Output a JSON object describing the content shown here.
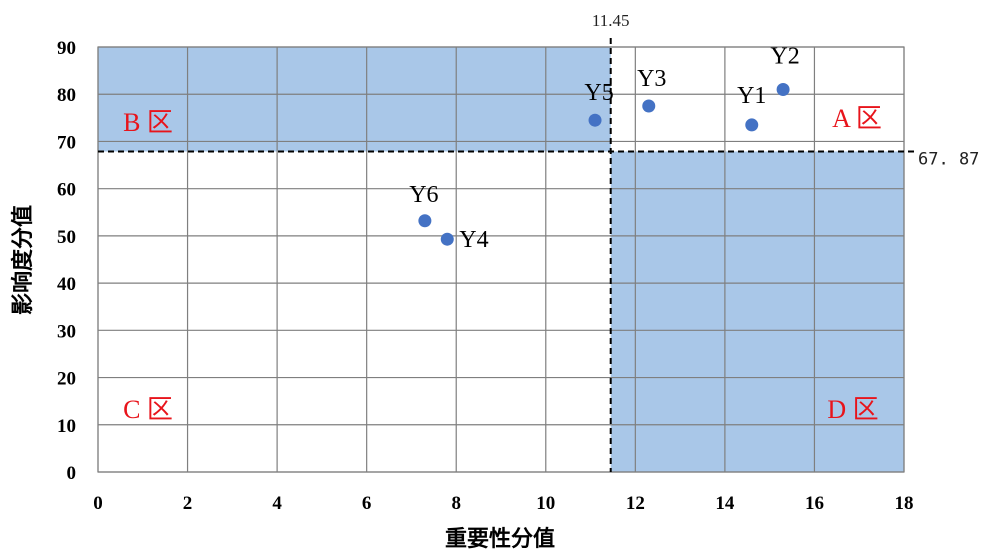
{
  "chart_data": {
    "type": "scatter",
    "xlabel": "重要性分值",
    "ylabel": "影响度分值",
    "xlim": [
      0,
      18
    ],
    "ylim": [
      0,
      90
    ],
    "x_ticks": [
      0,
      2,
      4,
      6,
      8,
      10,
      12,
      14,
      16,
      18
    ],
    "y_ticks": [
      0,
      10,
      20,
      30,
      40,
      50,
      60,
      70,
      80,
      90
    ],
    "grid": true,
    "points": [
      {
        "label": "Y1",
        "x": 14.6,
        "y": 73.5
      },
      {
        "label": "Y2",
        "x": 15.3,
        "y": 81
      },
      {
        "label": "Y3",
        "x": 12.3,
        "y": 77.5
      },
      {
        "label": "Y4",
        "x": 7.8,
        "y": 49.3
      },
      {
        "label": "Y5",
        "x": 11.1,
        "y": 74.5
      },
      {
        "label": "Y6",
        "x": 7.3,
        "y": 53.2
      }
    ],
    "thresholds": {
      "x": {
        "value": 11.45,
        "label": "11.45"
      },
      "y": {
        "value": 67.87,
        "label": "67. 87"
      }
    },
    "zones": [
      {
        "label": "A 区",
        "highlighted": false
      },
      {
        "label": "B 区",
        "highlighted": true
      },
      {
        "label": "C 区",
        "highlighted": false
      },
      {
        "label": "D 区",
        "highlighted": true
      }
    ],
    "colors": {
      "zone_fill": "#a9c7e8",
      "point": "#4472c4",
      "zone_label": "#e8141b",
      "grid": "#7f7f7f",
      "threshold": "#000000"
    }
  }
}
